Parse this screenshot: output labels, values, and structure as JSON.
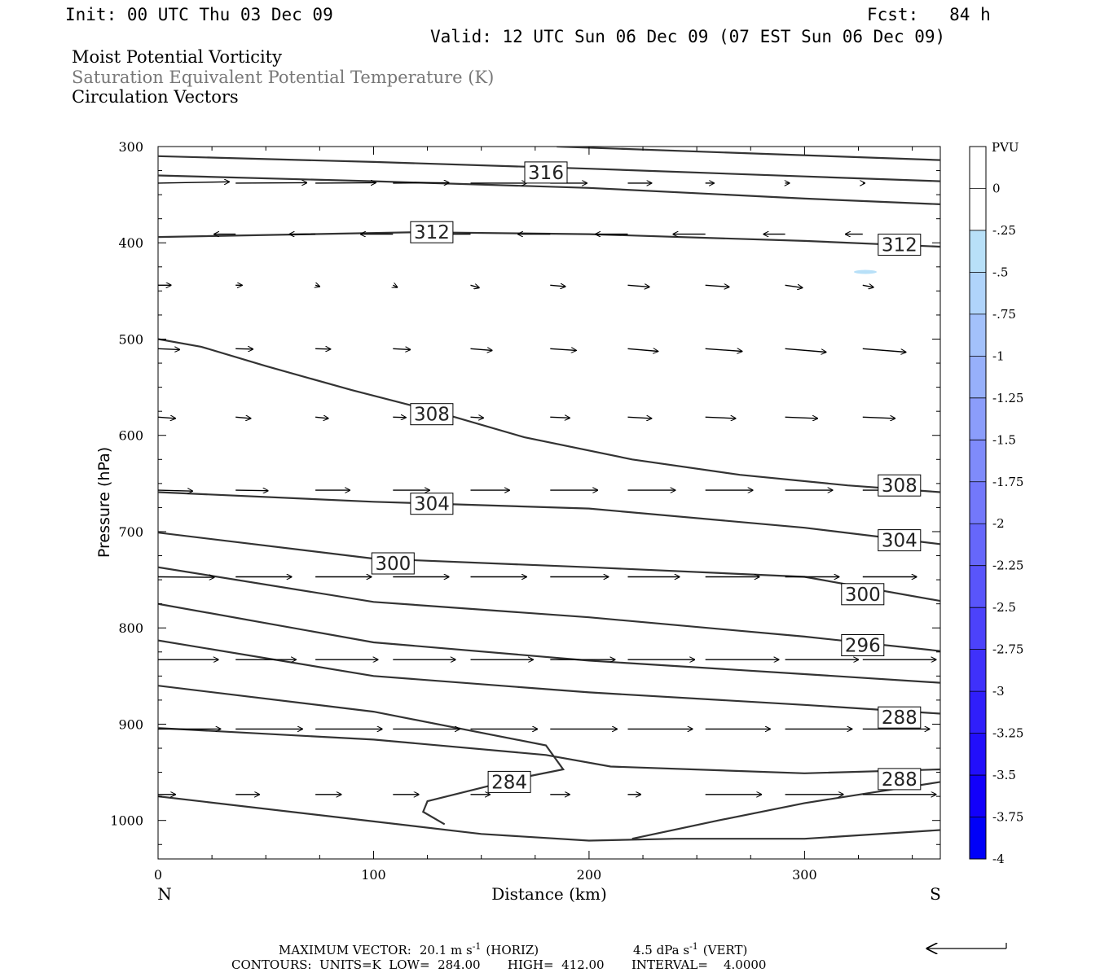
{
  "header": {
    "init": "Init: 00 UTC Thu 03 Dec 09",
    "fcst": "Fcst:   84 h",
    "valid": "Valid: 12 UTC Sun 06 Dec 09 (07 EST Sun 06 Dec 09)",
    "field1": "Moist Potential Vorticity",
    "field2": "Saturation Equivalent Potential Temperature (K)",
    "field3": "Circulation Vectors"
  },
  "colors": {
    "field2_text": "#777777",
    "contour": "#333333",
    "colorbar": [
      "#ffffff",
      "#ffffff",
      "#b8e0f8",
      "#b0d4fb",
      "#a3c1fb",
      "#97b0fb",
      "#8b9dfb",
      "#7f8bfb",
      "#7378fb",
      "#6667fb",
      "#5955fb",
      "#4c42fb",
      "#3f31fb",
      "#301ffb",
      "#220ffb",
      "#1200fb",
      "#0000f8"
    ]
  },
  "chart_data": {
    "type": "cross-section",
    "xlabel": "Distance (km)",
    "ylabel": "Pressure (hPa)",
    "xlim": [
      0,
      363
    ],
    "ylim": [
      300,
      1040
    ],
    "x_ticks": [
      0,
      100,
      200,
      300
    ],
    "y_ticks": [
      300,
      400,
      500,
      600,
      700,
      800,
      900,
      1000
    ],
    "x_end_labels": {
      "left": "N",
      "right": "S"
    },
    "colorbar": {
      "title": "PVU",
      "labels": [
        "0",
        "-.25",
        "-.5",
        "-.75",
        "-1",
        "-1.25",
        "-1.5",
        "-1.75",
        "-2",
        "-2.25",
        "-2.5",
        "-2.75",
        "-3",
        "-3.25",
        "-3.5",
        "-3.75",
        "-4"
      ]
    },
    "contours": [
      {
        "points": [
          [
            185,
            300
          ],
          [
            363,
            314
          ]
        ]
      },
      {
        "points": [
          [
            0,
            310
          ],
          [
            100,
            316
          ],
          [
            200,
            323
          ],
          [
            300,
            331
          ],
          [
            363,
            336
          ]
        ]
      },
      {
        "points": [
          [
            0,
            330
          ],
          [
            100,
            336
          ],
          [
            200,
            343
          ],
          [
            300,
            354
          ],
          [
            363,
            360
          ]
        ]
      },
      {
        "points": [
          [
            0,
            394
          ],
          [
            120,
            389
          ],
          [
            200,
            391
          ],
          [
            300,
            398
          ],
          [
            363,
            404
          ]
        ]
      },
      {
        "points": [
          [
            0,
            500
          ],
          [
            20,
            508
          ],
          [
            50,
            528
          ],
          [
            90,
            553
          ],
          [
            130,
            576
          ],
          [
            170,
            602
          ],
          [
            220,
            625
          ],
          [
            270,
            641
          ],
          [
            320,
            652
          ],
          [
            363,
            659
          ]
        ]
      },
      {
        "points": [
          [
            0,
            659
          ],
          [
            100,
            669
          ],
          [
            200,
            676
          ],
          [
            300,
            696
          ],
          [
            363,
            713
          ]
        ]
      },
      {
        "points": [
          [
            0,
            701
          ],
          [
            100,
            728
          ],
          [
            200,
            737
          ],
          [
            300,
            747
          ],
          [
            363,
            772
          ]
        ]
      },
      {
        "points": [
          [
            0,
            737
          ],
          [
            100,
            773
          ],
          [
            200,
            789
          ],
          [
            300,
            809
          ],
          [
            363,
            824
          ]
        ]
      },
      {
        "points": [
          [
            0,
            775
          ],
          [
            100,
            815
          ],
          [
            200,
            834
          ],
          [
            300,
            848
          ],
          [
            363,
            857
          ]
        ]
      },
      {
        "points": [
          [
            0,
            813
          ],
          [
            100,
            850
          ],
          [
            200,
            867
          ],
          [
            300,
            880
          ],
          [
            363,
            889
          ]
        ]
      },
      {
        "points": [
          [
            0,
            860
          ],
          [
            100,
            887
          ],
          [
            180,
            922
          ],
          [
            188,
            947
          ],
          [
            170,
            955
          ],
          [
            125,
            980
          ],
          [
            123,
            991
          ],
          [
            133,
            1004
          ]
        ]
      },
      {
        "points": [
          [
            0,
            904
          ],
          [
            100,
            916
          ],
          [
            180,
            932
          ],
          [
            210,
            944
          ],
          [
            300,
            951
          ],
          [
            363,
            947
          ]
        ]
      },
      {
        "points": [
          [
            0,
            975
          ],
          [
            100,
            1001
          ],
          [
            150,
            1014
          ],
          [
            200,
            1021
          ],
          [
            240,
            1019
          ],
          [
            300,
            1019
          ],
          [
            363,
            1010
          ]
        ]
      },
      {
        "points": [
          [
            220,
            1019
          ],
          [
            260,
            1000
          ],
          [
            300,
            982
          ],
          [
            363,
            960
          ]
        ]
      }
    ],
    "contour_labels": [
      {
        "text": "316",
        "x": 180,
        "y": 327
      },
      {
        "text": "312",
        "x": 127,
        "y": 389
      },
      {
        "text": "312",
        "x": 344,
        "y": 402
      },
      {
        "text": "308",
        "x": 127,
        "y": 578
      },
      {
        "text": "308",
        "x": 344,
        "y": 652
      },
      {
        "text": "304",
        "x": 127,
        "y": 671
      },
      {
        "text": "304",
        "x": 344,
        "y": 709
      },
      {
        "text": "300",
        "x": 109,
        "y": 733
      },
      {
        "text": "300",
        "x": 327,
        "y": 765
      },
      {
        "text": "296",
        "x": 327,
        "y": 818
      },
      {
        "text": "288",
        "x": 344,
        "y": 893
      },
      {
        "text": "288",
        "x": 344,
        "y": 957
      },
      {
        "text": "284",
        "x": 163,
        "y": 960
      }
    ],
    "vectors": {
      "x": [
        0,
        36,
        73,
        109,
        145,
        182,
        218,
        254,
        291,
        327
      ],
      "rows": [
        {
          "p": 338,
          "dx": [
            33,
            33,
            28,
            26,
            26,
            17,
            11,
            4,
            2,
            1
          ],
          "dy": [
            -3,
            -1,
            -1,
            -1,
            0,
            0,
            0,
            0,
            0,
            0
          ]
        },
        {
          "p": 391,
          "dx": [
            -13,
            -10,
            -12,
            -15,
            -15,
            -15,
            -15,
            -15,
            -10,
            -8
          ],
          "dy": [
            0,
            0,
            0,
            0,
            0,
            0,
            0,
            0,
            0,
            0
          ]
        },
        {
          "p": 444,
          "dx": [
            6,
            3,
            2,
            2,
            4,
            7,
            10,
            11,
            8,
            5
          ],
          "dy": [
            0,
            0,
            3,
            5,
            6,
            3,
            4,
            4,
            6,
            5
          ]
        },
        {
          "p": 510,
          "dx": [
            10,
            8,
            7,
            8,
            10,
            12,
            14,
            17,
            19,
            20
          ],
          "dy": [
            2,
            1,
            1,
            2,
            4,
            4,
            6,
            6,
            8,
            8
          ]
        },
        {
          "p": 581,
          "dx": [
            8,
            7,
            6,
            6,
            6,
            9,
            11,
            14,
            15,
            15
          ],
          "dy": [
            3,
            3,
            3,
            1,
            2,
            2,
            3,
            3,
            3,
            3
          ]
        },
        {
          "p": 657,
          "dx": [
            16,
            15,
            16,
            17,
            18,
            22,
            22,
            22,
            22,
            22
          ],
          "dy": [
            2,
            1,
            0,
            0,
            0,
            0,
            0,
            0,
            0,
            0
          ]
        },
        {
          "p": 747,
          "dx": [
            26,
            26,
            26,
            26,
            26,
            27,
            24,
            25,
            25,
            25
          ],
          "dy": [
            1,
            0,
            0,
            0,
            0,
            0,
            0,
            0,
            0,
            0
          ]
        },
        {
          "p": 833,
          "dx": [
            28,
            28,
            29,
            29,
            29,
            30,
            31,
            34,
            34,
            34
          ],
          "dy": [
            0,
            0,
            0,
            0,
            0,
            0,
            0,
            0,
            0,
            0
          ]
        },
        {
          "p": 905,
          "dx": [
            29,
            31,
            31,
            31,
            31,
            31,
            30,
            30,
            31,
            31
          ],
          "dy": [
            0,
            0,
            0,
            0,
            0,
            0,
            0,
            0,
            0,
            0
          ]
        },
        {
          "p": 973,
          "dx": [
            8,
            11,
            12,
            12,
            9,
            9,
            6,
            26,
            27,
            34
          ],
          "dy": [
            0,
            0,
            0,
            0,
            0,
            0,
            0,
            0,
            0,
            0
          ]
        }
      ]
    }
  },
  "footer": {
    "max_vector_label": "MAXIMUM VECTOR:",
    "max_vector_horiz": "20.1 m s",
    "max_vector_horiz_unit": "-1",
    "max_vector_horiz_tag": "(HORIZ)",
    "max_vector_vert": "4.5 dPa s",
    "max_vector_vert_unit": "-1",
    "max_vector_vert_tag": "(VERT)",
    "contours_line": "CONTOURS:  UNITS=K  LOW=  284.00       HIGH=  412.00       INTERVAL=    4.0000"
  }
}
